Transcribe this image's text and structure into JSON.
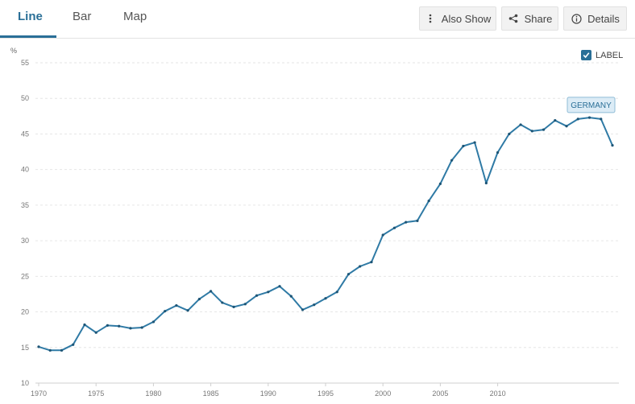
{
  "tabs": [
    {
      "label": "Line",
      "active": true
    },
    {
      "label": "Bar",
      "active": false
    },
    {
      "label": "Map",
      "active": false
    }
  ],
  "toolbar": {
    "also_show_label": "Also Show",
    "share_label": "Share",
    "details_label": "Details"
  },
  "toggle": {
    "label": "LABEL",
    "checked": true
  },
  "colors": {
    "accent": "#2a6f97",
    "line": "#2f7aa5",
    "grid": "#e6e6e6"
  },
  "chart_data": {
    "type": "line",
    "unit": "%",
    "ylim": [
      10,
      55
    ],
    "yticks": [
      10,
      15,
      20,
      25,
      30,
      35,
      40,
      45,
      50,
      55
    ],
    "xlim": [
      1970,
      2020
    ],
    "xticks": [
      1970,
      1975,
      1980,
      1985,
      1990,
      1995,
      2000,
      2005,
      2010
    ],
    "grid": true,
    "series": [
      {
        "name": "GERMANY",
        "x": [
          1970,
          1971,
          1972,
          1973,
          1974,
          1975,
          1976,
          1977,
          1978,
          1979,
          1980,
          1981,
          1982,
          1983,
          1984,
          1985,
          1986,
          1987,
          1988,
          1989,
          1990,
          1991,
          1992,
          1993,
          1994,
          1995,
          1996,
          1997,
          1998,
          1999,
          2000,
          2001,
          2002,
          2003,
          2004,
          2005,
          2006,
          2007,
          2008,
          2009,
          2010,
          2011,
          2012,
          2013,
          2014,
          2015,
          2016,
          2017,
          2018,
          2019,
          2020
        ],
        "values": [
          15.1,
          14.6,
          14.6,
          15.4,
          18.2,
          17.1,
          18.1,
          18.0,
          17.7,
          17.8,
          18.6,
          20.1,
          20.9,
          20.2,
          21.8,
          22.9,
          21.3,
          20.7,
          21.1,
          22.3,
          22.8,
          23.6,
          22.2,
          20.3,
          21.0,
          21.9,
          22.8,
          25.3,
          26.4,
          27.0,
          30.8,
          31.8,
          32.6,
          32.8,
          35.6,
          38.0,
          41.3,
          43.3,
          43.8,
          38.1,
          42.4,
          45.0,
          46.3,
          45.4,
          45.6,
          46.9,
          46.1,
          47.1,
          47.3,
          47.1,
          43.4
        ]
      }
    ]
  }
}
